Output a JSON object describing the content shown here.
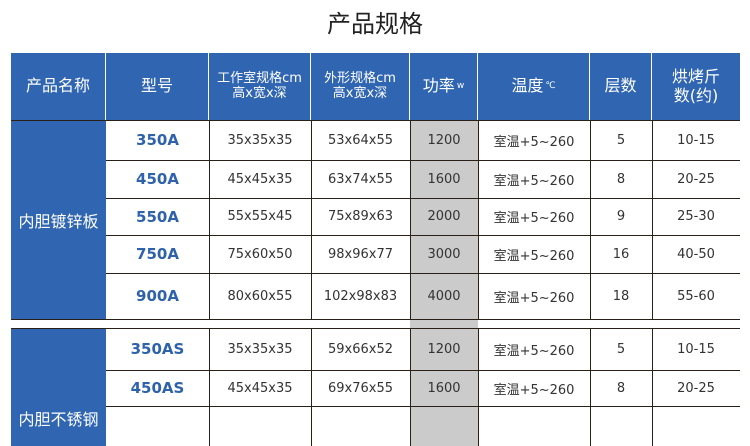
{
  "title": "产品规格",
  "headers": {
    "name": "产品名称",
    "model": "型号",
    "chamber": "工作室规格cm",
    "chamber_sub": "高x宽x深",
    "outer": "外形规格cm",
    "outer_sub": "高x宽x深",
    "power": "功率",
    "power_unit": "w",
    "temp": "温度",
    "temp_unit": "℃",
    "layers": "层数",
    "capacity": "烘烤斤数(约)"
  },
  "groups": [
    {
      "name": "内胆镀锌板",
      "rows": [
        {
          "model": "350A",
          "chamber": "35x35x35",
          "outer": "53x64x55",
          "power": "1200",
          "temp": "室温+5~260",
          "layers": "5",
          "capacity": "10-15"
        },
        {
          "model": "450A",
          "chamber": "45x45x35",
          "outer": "63x74x55",
          "power": "1600",
          "temp": "室温+5~260",
          "layers": "8",
          "capacity": "20-25"
        },
        {
          "model": "550A",
          "chamber": "55x55x45",
          "outer": "75x89x63",
          "power": "2000",
          "temp": "室温+5~260",
          "layers": "9",
          "capacity": "25-30"
        },
        {
          "model": "750A",
          "chamber": "75x60x50",
          "outer": "98x96x77",
          "power": "3000",
          "temp": "室温+5~260",
          "layers": "16",
          "capacity": "40-50"
        },
        {
          "model": "900A",
          "chamber": "80x60x55",
          "outer": "102x98x83",
          "power": "4000",
          "temp": "室温+5~260",
          "layers": "18",
          "capacity": "55-60"
        }
      ]
    },
    {
      "name": "内胆不锈钢",
      "rows": [
        {
          "model": "350AS",
          "chamber": "35x35x35",
          "outer": "59x66x52",
          "power": "1200",
          "temp": "室温+5~260",
          "layers": "5",
          "capacity": "10-15"
        },
        {
          "model": "450AS",
          "chamber": "45x45x35",
          "outer": "69x76x55",
          "power": "1600",
          "temp": "室温+5~260",
          "layers": "8",
          "capacity": "20-25"
        },
        {
          "model": "",
          "chamber": "",
          "outer": "",
          "power": "",
          "temp": "",
          "layers": "",
          "capacity": ""
        }
      ]
    }
  ],
  "colors": {
    "header_bg": "#2f65b1",
    "model_text": "#2f62ac",
    "power_col_bg": "#cbcbcb"
  }
}
